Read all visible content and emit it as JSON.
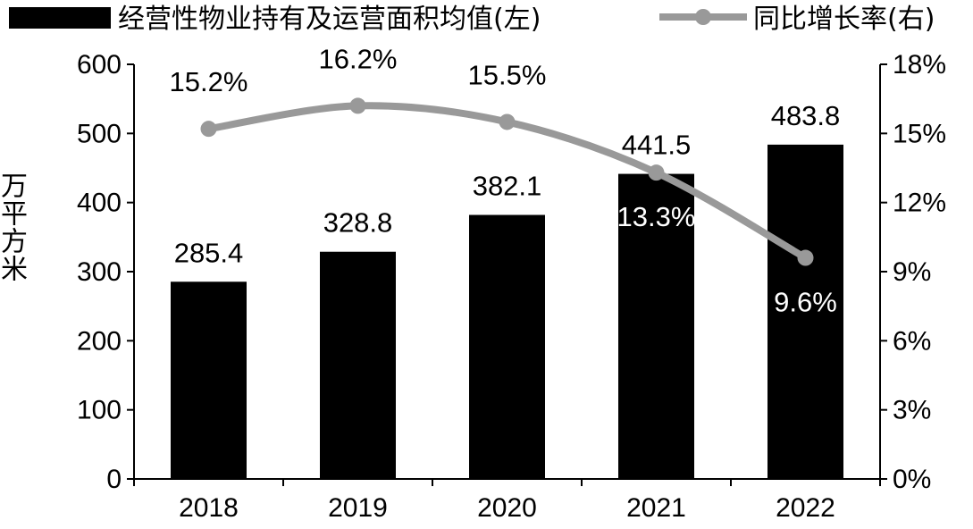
{
  "chart_data": {
    "type": "bar",
    "categories": [
      "2018",
      "2019",
      "2020",
      "2021",
      "2022"
    ],
    "series": [
      {
        "name": "经营性物业持有及运营面积均值(左)",
        "type": "bar",
        "axis": "left",
        "values": [
          285.4,
          328.8,
          382.1,
          441.5,
          483.8
        ],
        "labels": [
          "285.4",
          "328.8",
          "382.1",
          "441.5",
          "483.8"
        ],
        "color": "#000000"
      },
      {
        "name": "同比增长率(右)",
        "type": "line",
        "axis": "right",
        "values": [
          15.2,
          16.2,
          15.5,
          13.3,
          9.6
        ],
        "labels": [
          "15.2%",
          "16.2%",
          "15.5%",
          "13.3%",
          "9.6%"
        ],
        "color": "#999999"
      }
    ],
    "y_left": {
      "label": "万平方米",
      "ylim": [
        0,
        600
      ],
      "ticks": [
        "0",
        "100",
        "200",
        "300",
        "400",
        "500",
        "600"
      ]
    },
    "y_right": {
      "ylim": [
        0,
        18
      ],
      "ticks": [
        "0%",
        "3%",
        "6%",
        "9%",
        "12%",
        "15%",
        "18%"
      ]
    },
    "grid": false,
    "legend": "top"
  }
}
